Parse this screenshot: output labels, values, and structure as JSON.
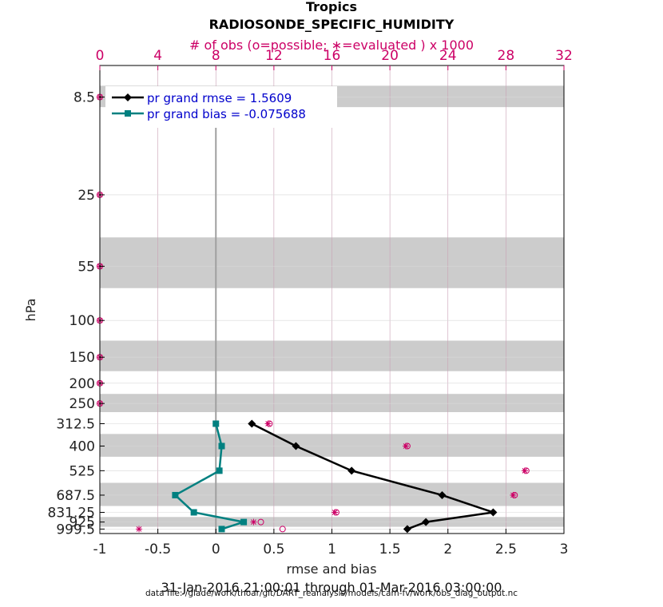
{
  "title": {
    "line1": "Tropics",
    "line2": "RADIOSONDE_SPECIFIC_HUMIDITY"
  },
  "top_axis_label": "# of obs (o=possible; ∗=evaluated ) x 1000",
  "ylabel": "hPa",
  "xlabel": "rmse and bias",
  "date_range": "31-Jan-2016 21:00:01 through 01-Mar-2016 03:00:00",
  "data_file": "data file: /glade/work/thoar/git/DART_reanalysis/models/cam-fv/work/obs_diag_output.nc",
  "colors": {
    "rmse": "#000000",
    "bias": "#008080",
    "obs": "#cc0066",
    "legend_text": "#0000cc",
    "band": "#cccccc",
    "grid": "#c8a0b4",
    "zero_line": "#a0a0a0"
  },
  "chart_data": {
    "type": "line",
    "orientation": "vertical-profile",
    "y_axis": {
      "label": "hPa",
      "scale": "log",
      "direction": "reversed",
      "range": [
        6,
        1050
      ],
      "tick_values": [
        8.5,
        25,
        55,
        100,
        150,
        200,
        250,
        312.5,
        400,
        525,
        687.5,
        831.25,
        925,
        999.5
      ],
      "tick_labels": [
        "8.5",
        "25",
        "55",
        "100",
        "150",
        "200",
        "250",
        "312.5",
        "400",
        "525",
        "687.5",
        "831.25",
        "925",
        "999.5"
      ]
    },
    "x_axis": {
      "label": "rmse and bias",
      "range": [
        -1,
        3
      ],
      "ticks": [
        -1,
        -0.5,
        0,
        0.5,
        1,
        1.5,
        2,
        2.5,
        3
      ],
      "tick_labels": [
        "-1",
        "-0.5",
        "0",
        "0.5",
        "1",
        "1.5",
        "2",
        "2.5",
        "3"
      ]
    },
    "top_axis": {
      "label": "# of obs (o=possible; ∗=evaluated ) x 1000",
      "range": [
        0,
        32
      ],
      "ticks": [
        0,
        4,
        8,
        12,
        16,
        20,
        24,
        28,
        32
      ],
      "tick_labels": [
        "0",
        "4",
        "8",
        "12",
        "16",
        "20",
        "24",
        "28",
        "32"
      ]
    },
    "level_bands": [
      [
        7.5,
        9.5
      ],
      [
        40,
        70
      ],
      [
        125,
        175
      ],
      [
        225,
        275
      ],
      [
        350,
        450
      ],
      [
        600,
        775
      ],
      [
        875,
        975
      ]
    ],
    "grid": true,
    "legend": {
      "position": "top-left",
      "entries": [
        "pr grand rmse = 1.5609",
        "pr grand bias = -0.075688"
      ]
    },
    "series": [
      {
        "name": "pr grand rmse = 1.5609",
        "marker": "diamond",
        "levels": [
          312.5,
          400,
          525,
          687.5,
          831.25,
          925,
          999.5
        ],
        "values": [
          0.31,
          0.69,
          1.17,
          1.95,
          2.39,
          1.81,
          1.65
        ]
      },
      {
        "name": "pr grand bias = -0.075688",
        "marker": "square",
        "levels": [
          312.5,
          400,
          525,
          687.5,
          831.25,
          925,
          999.5
        ],
        "values": [
          0.0,
          0.05,
          0.03,
          -0.35,
          -0.19,
          0.24,
          0.05
        ]
      }
    ],
    "obs_counts": {
      "units": "thousands",
      "levels": [
        8.5,
        25,
        55,
        100,
        150,
        200,
        250,
        312.5,
        400,
        525,
        687.5,
        831.25,
        925,
        999.5
      ],
      "possible": [
        0,
        0,
        0,
        0,
        0,
        0,
        0,
        11.7,
        21.2,
        29.4,
        28.6,
        16.3,
        11.1,
        12.6
      ],
      "evaluated": [
        0,
        0,
        0,
        0,
        0,
        0,
        0,
        11.6,
        21.1,
        29.3,
        28.5,
        16.2,
        10.6,
        2.7
      ]
    }
  }
}
